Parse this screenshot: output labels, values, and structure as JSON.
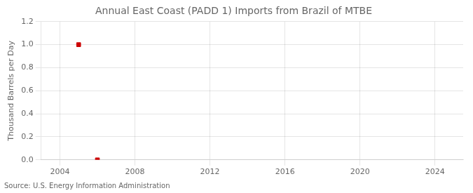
{
  "chart_data": {
    "type": "scatter",
    "title": "Annual East Coast (PADD 1) Imports from Brazil of MTBE",
    "ylabel": "Thousand Barrels per Day",
    "annotations": [
      "Source: U.S. Energy Information Administration"
    ],
    "x": [
      2005,
      2006
    ],
    "values": [
      1.0,
      0.0
    ],
    "color": "#cc0000",
    "marker": "square",
    "xlim": [
      2003.0,
      2025.5
    ],
    "ylim": [
      0.0,
      1.2
    ],
    "xticks": [
      2004,
      2008,
      2012,
      2016,
      2020,
      2024
    ],
    "yticks": [
      {
        "value": 0.0,
        "label": "0.0"
      },
      0.2,
      0.4,
      0.6,
      0.8,
      {
        "value": 1.0,
        "label": "1.0"
      },
      1.2
    ],
    "grid": true
  }
}
